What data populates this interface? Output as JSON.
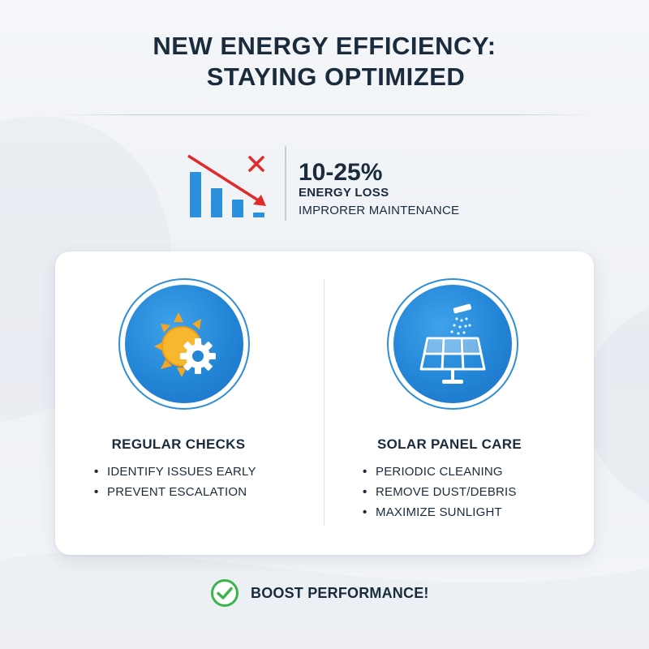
{
  "title": {
    "line1": "NEW ENERGY EFFICIENCY:",
    "line2": "STAYING OPTIMIZED"
  },
  "stat": {
    "value": "10-25%",
    "label": "ENERGY LOSS",
    "cause": "IMPRORER MAINTENANCE",
    "icon": "declining-bar-chart-icon",
    "bar_levels": [
      1.0,
      0.68,
      0.45,
      0.12
    ],
    "colors": {
      "bars": "#2b8fdc",
      "arrow": "#e02b2b"
    }
  },
  "cards": [
    {
      "icon": "sun-gear-icon",
      "heading": "REGULAR CHECKS",
      "items": [
        "IDENTIFY ISSUES EARLY",
        "PREVENT ESCALATION"
      ]
    },
    {
      "icon": "solar-panel-cleaning-icon",
      "heading": "SOLAR PANEL CARE",
      "items": [
        "PERIODIC CLEANING",
        "REMOVE DUST/DEBRIS",
        "MAXIMIZE SUNLIGHT"
      ]
    }
  ],
  "bullet": "•",
  "cta": {
    "icon": "check-circle-icon",
    "text": "BOOST PERFORMANCE!"
  },
  "colors": {
    "accent": "#2385d6",
    "text": "#1a2b3c",
    "success": "#3bb54a",
    "sun": "#f5a623"
  }
}
